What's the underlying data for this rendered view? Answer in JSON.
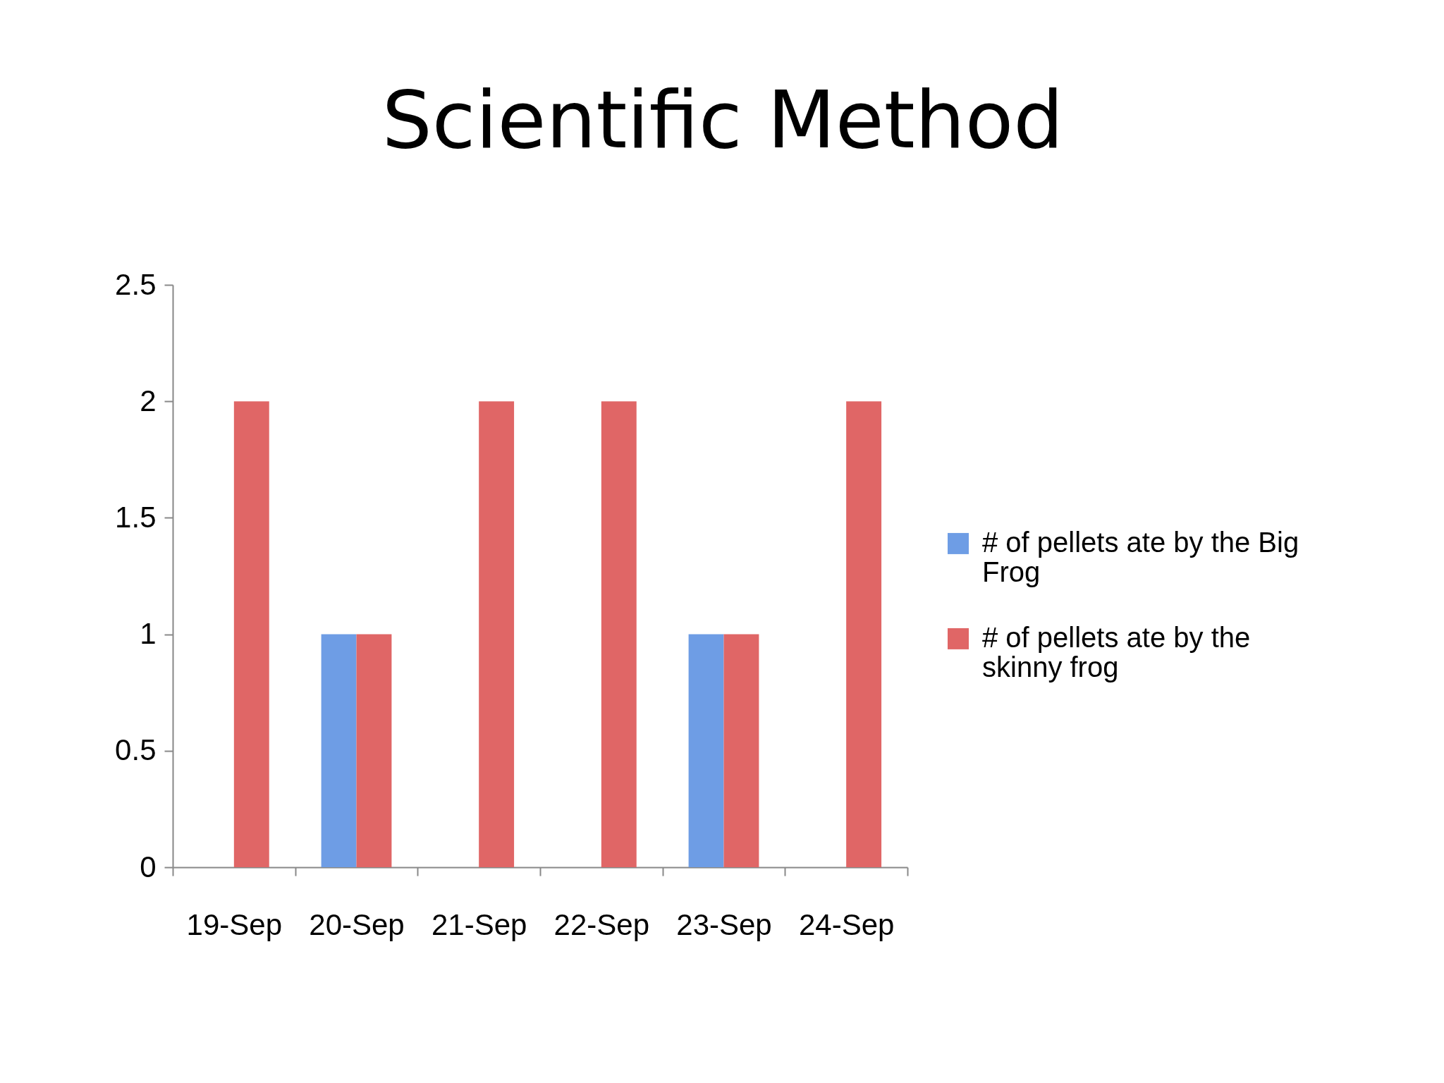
{
  "chart_data": {
    "type": "bar",
    "title": "Scientific Method",
    "categories": [
      "19-Sep",
      "20-Sep",
      "21-Sep",
      "22-Sep",
      "23-Sep",
      "24-Sep"
    ],
    "series": [
      {
        "name": "# of pellets ate by the Big Frog",
        "color": "#6e9de5",
        "values": [
          null,
          1,
          null,
          null,
          1,
          null
        ]
      },
      {
        "name": "# of pellets ate by the skinny frog",
        "color": "#e06666",
        "values": [
          2,
          1,
          2,
          2,
          1,
          2
        ]
      }
    ],
    "ylim": [
      0,
      2.5
    ],
    "yticks": [
      0,
      0.5,
      1,
      1.5,
      2,
      2.5
    ],
    "grid": false,
    "legend": "right"
  }
}
